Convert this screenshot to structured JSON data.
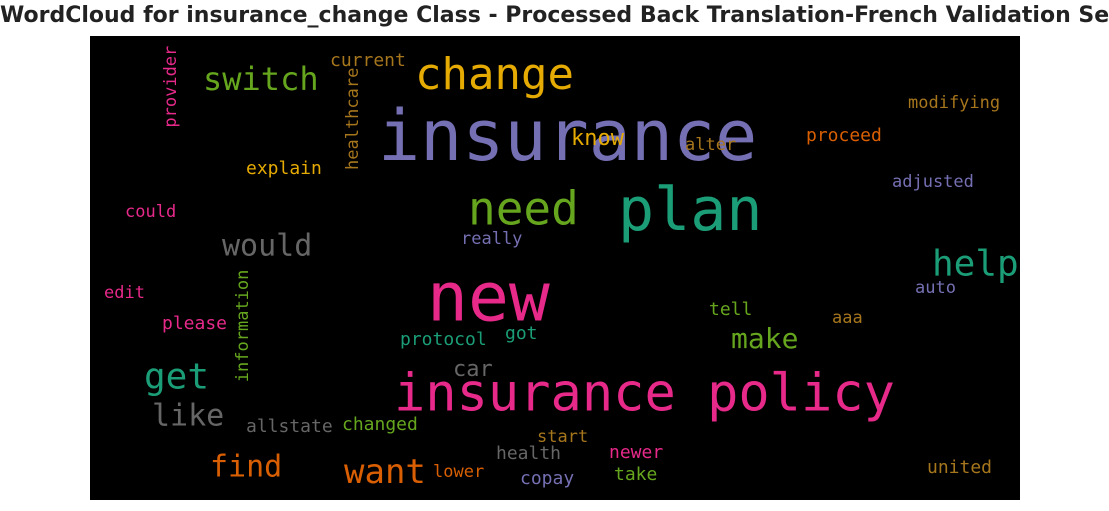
{
  "title": "WordCloud for insurance_change Class - Processed Back Translation-French Validation Set",
  "background": "#000000",
  "chart_data": {
    "type": "wordcloud",
    "title": "WordCloud for insurance_change Class - Processed Back Translation-French Validation Set",
    "words": [
      {
        "text": "insurance",
        "color": "#7570b3"
      },
      {
        "text": "change",
        "color": "#e6ab02"
      },
      {
        "text": "switch",
        "color": "#66a61e"
      },
      {
        "text": "current",
        "color": "#a6761d"
      },
      {
        "text": "provider",
        "color": "#e7298a"
      },
      {
        "text": "healthcare",
        "color": "#a6761d"
      },
      {
        "text": "modifying",
        "color": "#a6761d"
      },
      {
        "text": "proceed",
        "color": "#d95f02"
      },
      {
        "text": "know",
        "color": "#e6ab02"
      },
      {
        "text": "alter",
        "color": "#a6761d"
      },
      {
        "text": "explain",
        "color": "#e6ab02"
      },
      {
        "text": "adjusted",
        "color": "#7570b3"
      },
      {
        "text": "need",
        "color": "#66a61e"
      },
      {
        "text": "plan",
        "color": "#1b9e77"
      },
      {
        "text": "could",
        "color": "#e7298a"
      },
      {
        "text": "would",
        "color": "#666666"
      },
      {
        "text": "really",
        "color": "#7570b3"
      },
      {
        "text": "help",
        "color": "#1b9e77"
      },
      {
        "text": "new",
        "color": "#e7298a"
      },
      {
        "text": "auto",
        "color": "#7570b3"
      },
      {
        "text": "edit",
        "color": "#e7298a"
      },
      {
        "text": "tell",
        "color": "#66a61e"
      },
      {
        "text": "please",
        "color": "#e7298a"
      },
      {
        "text": "information",
        "color": "#66a61e"
      },
      {
        "text": "aaa",
        "color": "#a6761d"
      },
      {
        "text": "protocol",
        "color": "#1b9e77"
      },
      {
        "text": "got",
        "color": "#1b9e77"
      },
      {
        "text": "make",
        "color": "#66a61e"
      },
      {
        "text": "car",
        "color": "#666666"
      },
      {
        "text": "get",
        "color": "#1b9e77"
      },
      {
        "text": "insurance policy",
        "color": "#e7298a"
      },
      {
        "text": "like",
        "color": "#666666"
      },
      {
        "text": "allstate",
        "color": "#666666"
      },
      {
        "text": "changed",
        "color": "#66a61e"
      },
      {
        "text": "start",
        "color": "#a6761d"
      },
      {
        "text": "find",
        "color": "#d95f02"
      },
      {
        "text": "want",
        "color": "#d95f02"
      },
      {
        "text": "lower",
        "color": "#d95f02"
      },
      {
        "text": "health",
        "color": "#666666"
      },
      {
        "text": "newer",
        "color": "#e7298a"
      },
      {
        "text": "copay",
        "color": "#7570b3"
      },
      {
        "text": "take",
        "color": "#66a61e"
      },
      {
        "text": "united",
        "color": "#a6761d"
      }
    ]
  }
}
